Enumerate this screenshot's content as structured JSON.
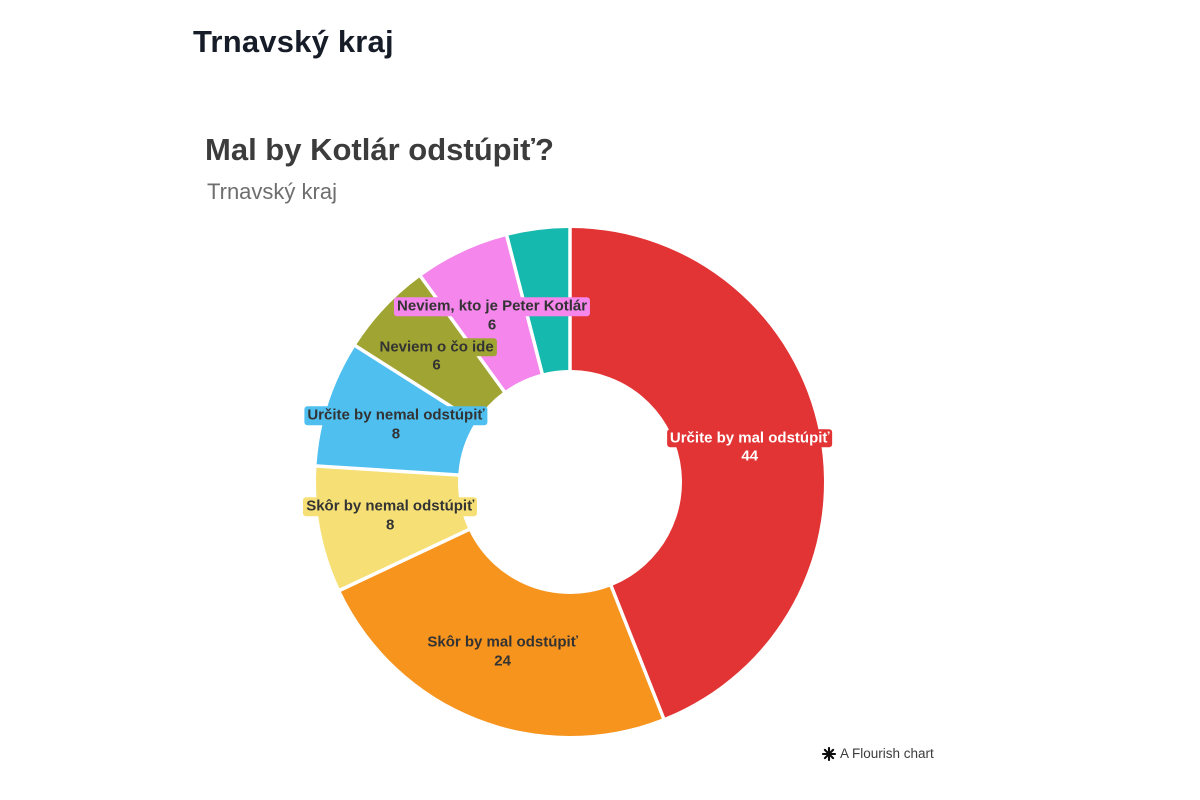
{
  "page": {
    "header": "Trnavský kraj"
  },
  "chart": {
    "title": "Mal by Kotlár odstúpiť?",
    "subtitle": "Trnavský kraj",
    "attribution": "A Flourish chart"
  },
  "chart_data": {
    "type": "pie",
    "variant": "donut",
    "title": "Mal by Kotlár odstúpiť?",
    "subtitle": "Trnavský kraj",
    "legend": "none",
    "start_angle_deg": 0,
    "direction": "clockwise",
    "inner_radius_ratio": 0.44,
    "slices": [
      {
        "label": "Určite by mal odstúpiť",
        "value": 44,
        "color": "#e23434",
        "text_color": "#ffffff",
        "label_visible": true
      },
      {
        "label": "Skôr by mal odstúpiť",
        "value": 24,
        "color": "#f6941d",
        "text_color": "#333333",
        "label_visible": true
      },
      {
        "label": "Skôr by nemal odstúpiť",
        "value": 8,
        "color": "#f6e076",
        "text_color": "#333333",
        "label_visible": true
      },
      {
        "label": "Určite by nemal odstúpiť",
        "value": 8,
        "color": "#4fbff0",
        "text_color": "#333333",
        "label_visible": true
      },
      {
        "label": "Neviem o čo ide",
        "value": 6,
        "color": "#a0a432",
        "text_color": "#333333",
        "label_visible": true
      },
      {
        "label": "Neviem, kto je Peter Kotlár",
        "value": 6,
        "color": "#f486ec",
        "text_color": "#333333",
        "label_visible": true
      },
      {
        "label": "",
        "value": 4,
        "color": "#16b9ae",
        "text_color": "#333333",
        "label_visible": false
      }
    ]
  }
}
